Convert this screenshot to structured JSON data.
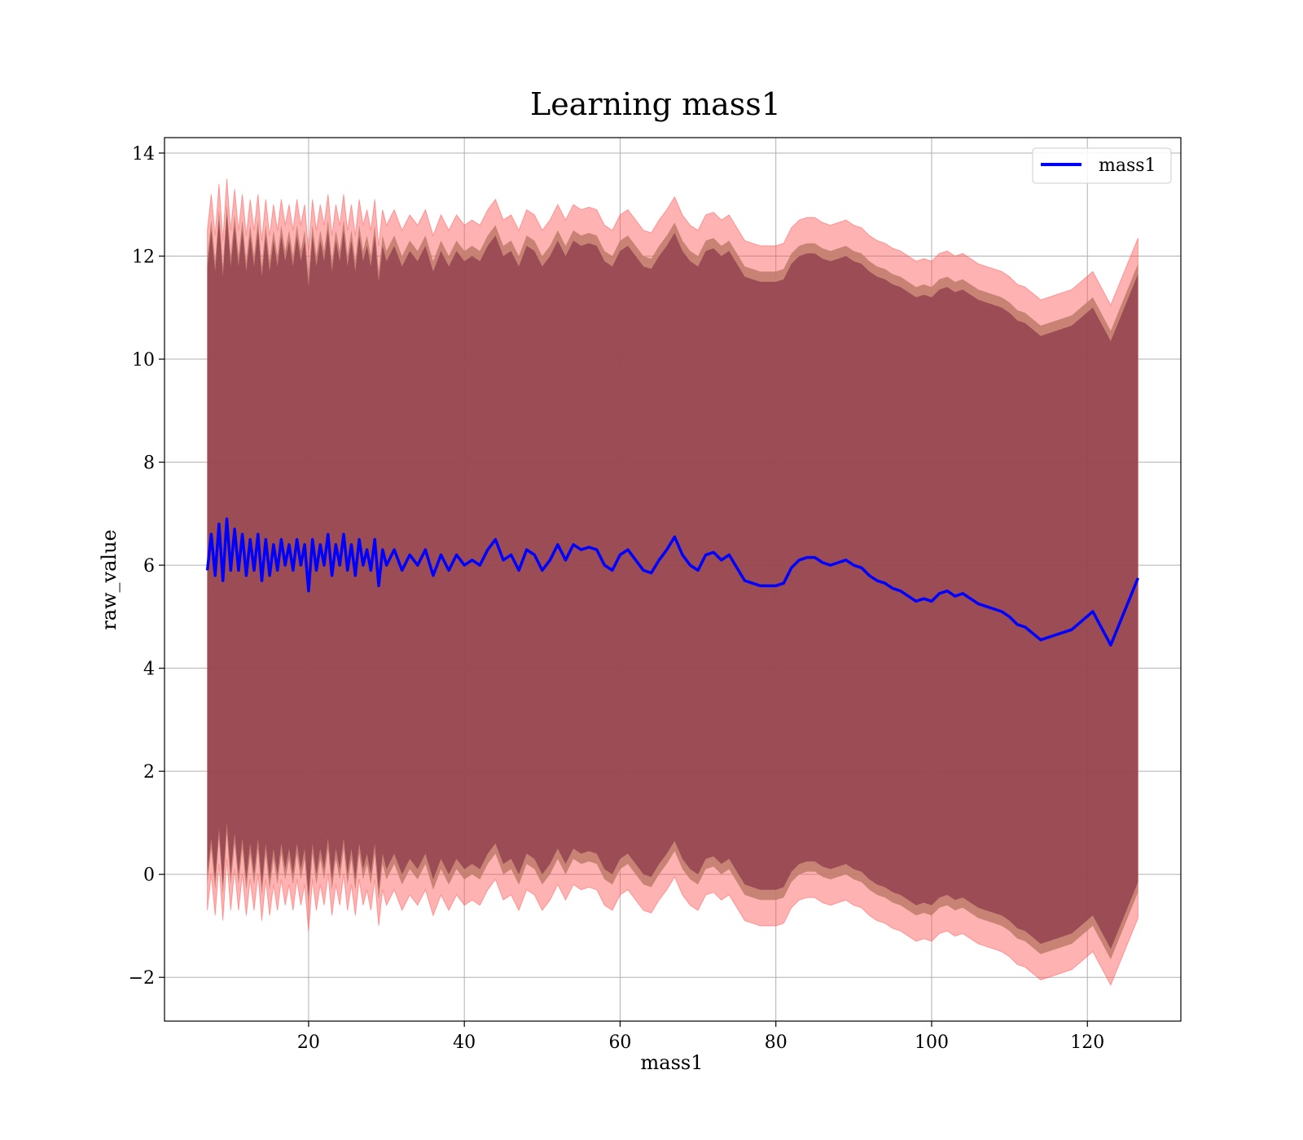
{
  "chart_data": {
    "type": "line",
    "title": "Learning mass1",
    "xlabel": "mass1",
    "ylabel": "raw_value",
    "xlim": [
      1.5,
      132
    ],
    "ylim": [
      -2.85,
      14.3
    ],
    "x_ticks": [
      20,
      40,
      60,
      80,
      100,
      120
    ],
    "y_ticks": [
      -2,
      0,
      2,
      4,
      6,
      8,
      10,
      12,
      14
    ],
    "y_tick_labels": [
      "−2",
      "0",
      "2",
      "4",
      "6",
      "8",
      "10",
      "12",
      "14"
    ],
    "grid": true,
    "legend": {
      "position": "top-right",
      "entries": [
        "mass1"
      ]
    },
    "colors": {
      "line": "#0000ff",
      "inner_band": "#8b3a4a",
      "mid_band": "#c07a6a",
      "outer_band": "#ff5555"
    },
    "band_half_widths": {
      "inner": 5.9,
      "mid": 6.1,
      "outer": 6.6
    },
    "series": [
      {
        "name": "mass1",
        "x": [
          7,
          7.5,
          8,
          8.5,
          9,
          9.5,
          10,
          10.5,
          11,
          11.5,
          12,
          12.5,
          13,
          13.5,
          14,
          14.5,
          15,
          15.5,
          16,
          16.5,
          17,
          17.5,
          18,
          18.5,
          19,
          19.5,
          20,
          20.5,
          21,
          21.5,
          22,
          22.5,
          23,
          23.5,
          24,
          24.5,
          25,
          25.5,
          26,
          26.5,
          27,
          27.5,
          28,
          28.5,
          29,
          29.5,
          30,
          31,
          32,
          33,
          34,
          35,
          36,
          37,
          38,
          39,
          40,
          41,
          42,
          43,
          44,
          45,
          46,
          47,
          48,
          49,
          50,
          51,
          52,
          53,
          54,
          55,
          56,
          57,
          58,
          59,
          60,
          61,
          62,
          63,
          64,
          65,
          66,
          67,
          68,
          69,
          70,
          71,
          72,
          73,
          74,
          75,
          76,
          77,
          78,
          79,
          80,
          81,
          82,
          83,
          84,
          85,
          86,
          87,
          88,
          89,
          90,
          91,
          92,
          93,
          94,
          95,
          96,
          97,
          98,
          99,
          100,
          101,
          102,
          103,
          104,
          105,
          106,
          107,
          108,
          109,
          110,
          111,
          112,
          114,
          116,
          118,
          120.7,
          123,
          126.5
        ],
        "values": [
          5.9,
          6.6,
          5.8,
          6.8,
          5.7,
          6.9,
          5.9,
          6.7,
          5.9,
          6.6,
          5.8,
          6.5,
          5.9,
          6.6,
          5.7,
          6.5,
          5.8,
          6.4,
          5.9,
          6.5,
          6.0,
          6.4,
          5.9,
          6.5,
          6.0,
          6.4,
          5.5,
          6.5,
          5.9,
          6.4,
          6.0,
          6.6,
          5.8,
          6.4,
          6.0,
          6.6,
          5.9,
          6.4,
          5.8,
          6.5,
          6.0,
          6.3,
          5.9,
          6.5,
          5.6,
          6.3,
          6.0,
          6.3,
          5.9,
          6.2,
          6.0,
          6.3,
          5.8,
          6.2,
          5.9,
          6.2,
          6.0,
          6.1,
          6.0,
          6.3,
          6.5,
          6.1,
          6.2,
          5.9,
          6.3,
          6.2,
          5.9,
          6.1,
          6.4,
          6.1,
          6.4,
          6.3,
          6.35,
          6.3,
          6.0,
          5.9,
          6.2,
          6.3,
          6.1,
          5.9,
          5.85,
          6.1,
          6.3,
          6.55,
          6.2,
          6.0,
          5.9,
          6.2,
          6.25,
          6.1,
          6.2,
          5.95,
          5.7,
          5.65,
          5.6,
          5.6,
          5.6,
          5.65,
          5.95,
          6.1,
          6.15,
          6.15,
          6.05,
          6.0,
          6.05,
          6.1,
          6.0,
          5.95,
          5.8,
          5.7,
          5.65,
          5.55,
          5.5,
          5.4,
          5.3,
          5.35,
          5.3,
          5.45,
          5.5,
          5.4,
          5.45,
          5.35,
          5.25,
          5.2,
          5.15,
          5.1,
          5.0,
          4.85,
          4.8,
          4.55,
          4.65,
          4.75,
          5.1,
          4.45,
          5.75
        ]
      }
    ]
  }
}
